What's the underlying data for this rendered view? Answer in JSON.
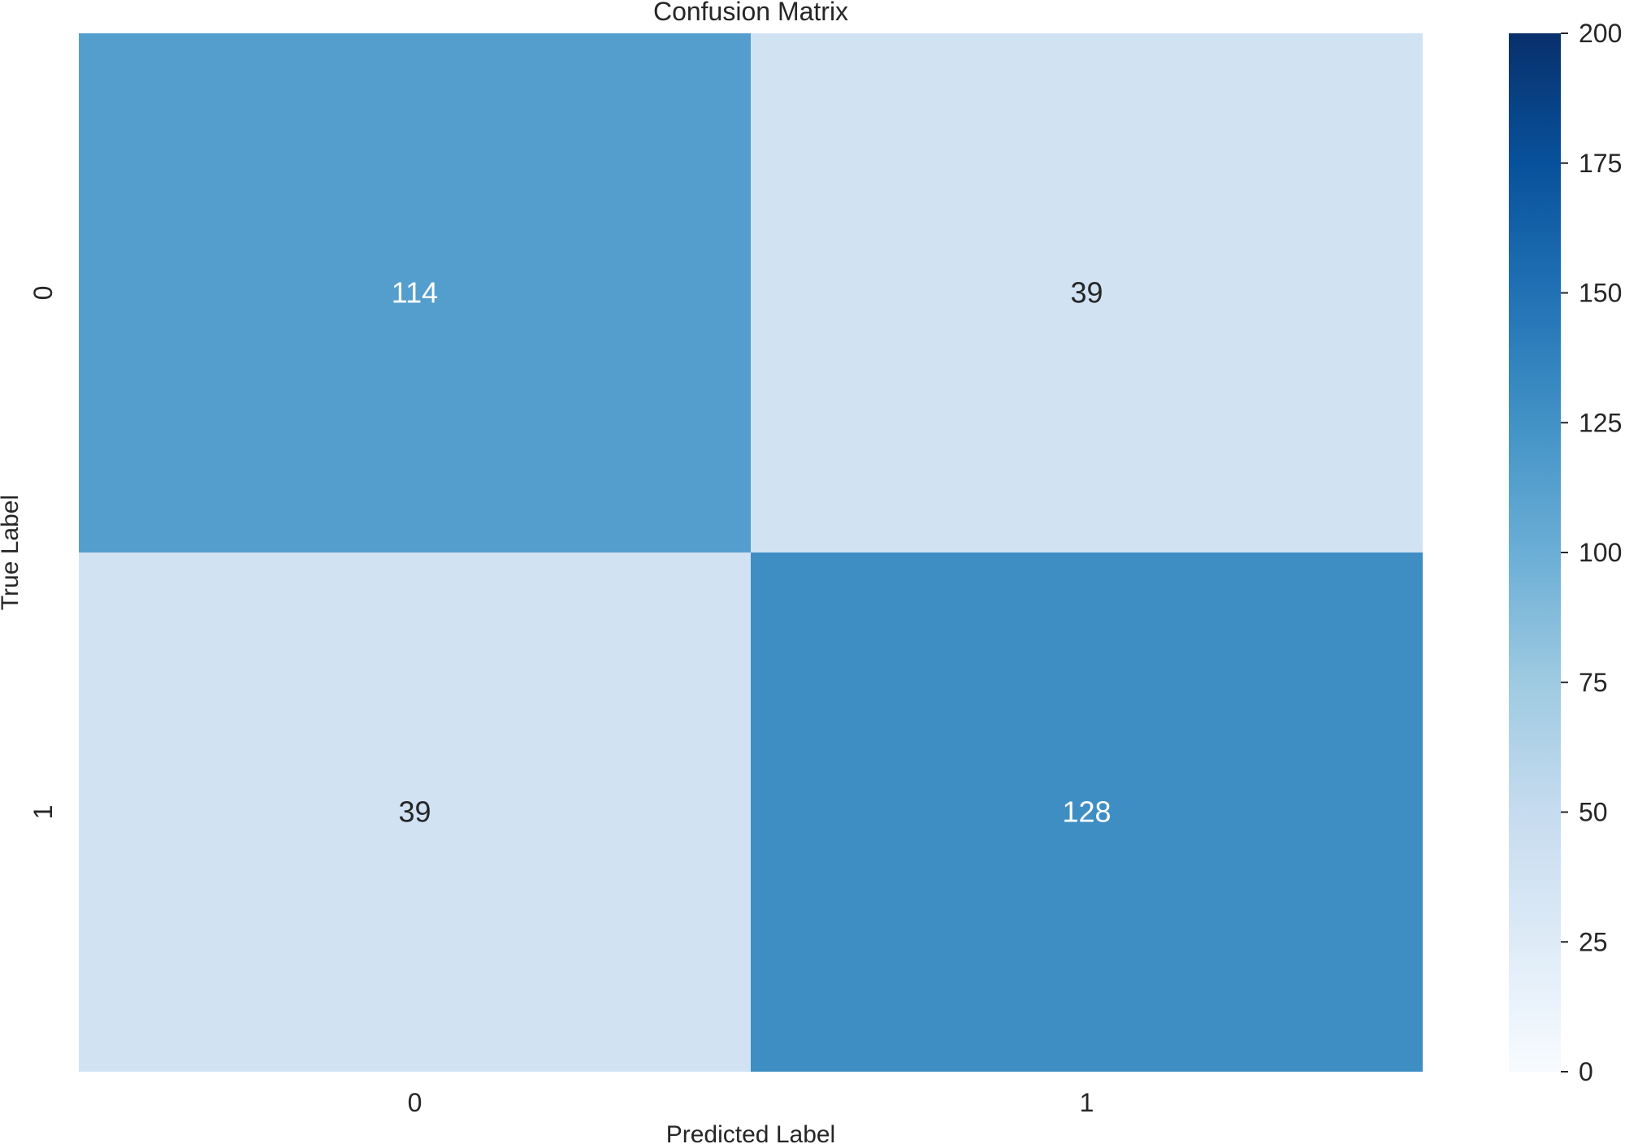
{
  "chart_data": {
    "type": "heatmap",
    "title": "Confusion Matrix",
    "xlabel": "Predicted Label",
    "ylabel": "True Label",
    "x_categories": [
      "0",
      "1"
    ],
    "y_categories": [
      "0",
      "1"
    ],
    "values": [
      [
        114,
        39
      ],
      [
        39,
        128
      ]
    ],
    "colormap": "Blues",
    "colorbar": {
      "range": [
        0,
        200
      ],
      "ticks": [
        0,
        25,
        50,
        75,
        100,
        125,
        150,
        175,
        200
      ]
    },
    "grid": false,
    "legend": "colorbar-right"
  }
}
